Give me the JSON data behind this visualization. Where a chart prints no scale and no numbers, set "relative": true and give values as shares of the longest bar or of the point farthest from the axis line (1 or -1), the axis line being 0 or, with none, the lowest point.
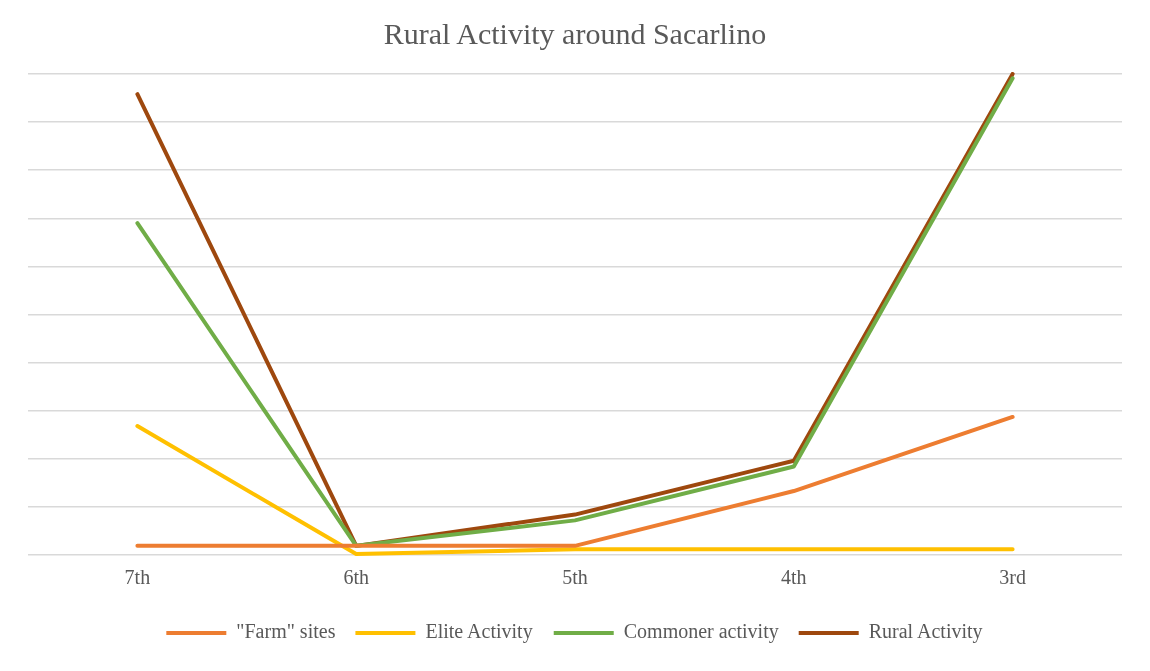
{
  "chart_data": {
    "type": "line",
    "title": "Rural Activity around Sacarlino",
    "relative": true,
    "categories": [
      "7th",
      "6th",
      "5th",
      "4th",
      "3rd"
    ],
    "series": [
      {
        "name": "\"Farm\" sites",
        "color": "#ed7d31",
        "values": [
          0.019,
          0.019,
          0.019,
          0.133,
          0.287
        ]
      },
      {
        "name": "Elite Activity",
        "color": "#ffc000",
        "values": [
          0.268,
          0.002,
          0.012,
          0.012,
          0.012
        ]
      },
      {
        "name": "Commoner activity",
        "color": "#70ad47",
        "values": [
          0.69,
          0.019,
          0.072,
          0.184,
          0.991
        ]
      },
      {
        "name": "Rural Activity",
        "color": "#9e480e",
        "values": [
          0.958,
          0.019,
          0.084,
          0.196,
          1
        ]
      }
    ],
    "grid": "y",
    "legend": "bottom",
    "marker": "none",
    "line_style": "solid"
  }
}
